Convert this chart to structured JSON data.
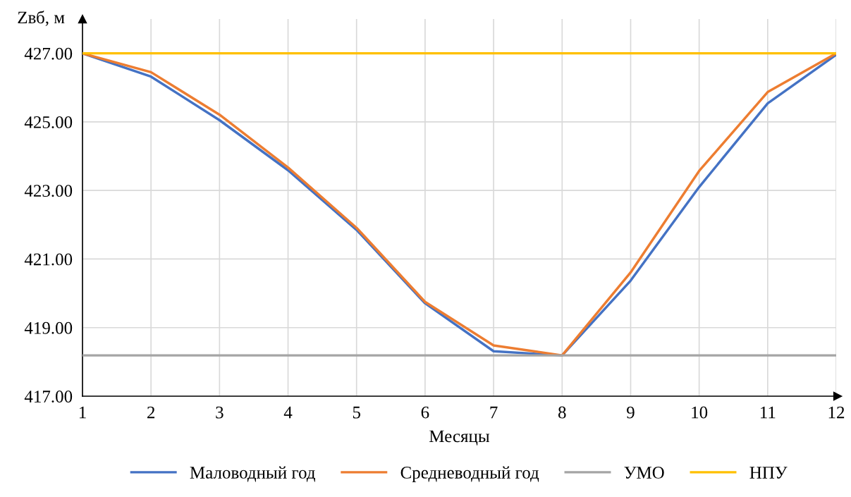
{
  "chart_data": {
    "type": "line",
    "xlabel": "Месяцы",
    "ylabel": "Zвб, м",
    "x": [
      1,
      2,
      3,
      4,
      5,
      6,
      7,
      8,
      9,
      10,
      11,
      12
    ],
    "series": [
      {
        "name": "Маловодный год",
        "color": "#4472c4",
        "values": [
          427.0,
          426.32,
          425.05,
          423.59,
          421.85,
          419.71,
          418.31,
          418.19,
          420.37,
          423.1,
          425.54,
          426.96
        ]
      },
      {
        "name": "Средневодный год",
        "color": "#ed7d31",
        "values": [
          427.0,
          426.45,
          425.21,
          423.67,
          421.91,
          419.75,
          418.48,
          418.19,
          420.61,
          423.57,
          425.87,
          427.0
        ]
      },
      {
        "name": "УМО",
        "color": "#a5a5a5",
        "values": [
          418.19,
          418.19,
          418.19,
          418.19,
          418.19,
          418.19,
          418.19,
          418.19,
          418.19,
          418.19,
          418.19,
          418.19
        ]
      },
      {
        "name": "НПУ",
        "color": "#ffc000",
        "values": [
          427.0,
          427.0,
          427.0,
          427.0,
          427.0,
          427.0,
          427.0,
          427.0,
          427.0,
          427.0,
          427.0,
          427.0
        ]
      }
    ],
    "xlim": [
      1,
      12
    ],
    "xticks": [
      1,
      2,
      3,
      4,
      5,
      6,
      7,
      8,
      9,
      10,
      11,
      12
    ],
    "ylim": [
      417,
      428
    ],
    "yticks": [
      {
        "value": 417,
        "label": "417.00"
      },
      {
        "value": 419,
        "label": "419.00"
      },
      {
        "value": 421,
        "label": "421.00"
      },
      {
        "value": 423,
        "label": "423.00"
      },
      {
        "value": 425,
        "label": "425.00"
      },
      {
        "value": 427,
        "label": "427.00"
      }
    ],
    "grid": true,
    "legend": "bottom",
    "marker": "none",
    "line_style": "solid"
  }
}
